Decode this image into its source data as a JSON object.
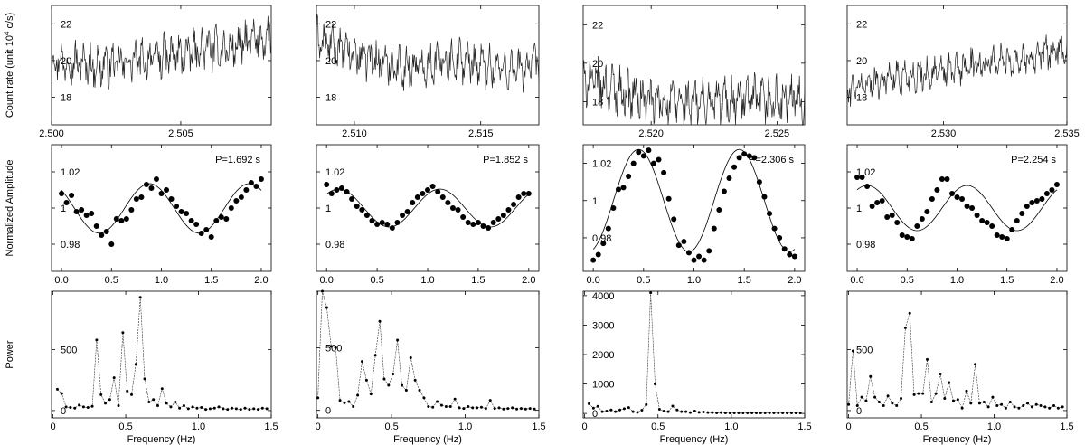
{
  "chart_data": [
    {
      "type": "line",
      "row": "light curve",
      "panels": [
        {
          "ylabel": "Count rate (unit 10^4 c/s)",
          "xlim": [
            2.5,
            2.5085
          ],
          "ylim": [
            16.5,
            23.0
          ],
          "xticks": [
            2.5,
            2.505
          ],
          "xticklabels": [
            "2.500",
            "2.505"
          ],
          "yticks": [
            18,
            20,
            22
          ],
          "yticklabels": [
            "18",
            "20",
            "22"
          ],
          "trend": [
            20.1,
            19.9,
            19.7,
            19.8,
            20.0,
            20.2,
            20.3,
            20.7,
            20.6,
            21.0,
            21.3
          ],
          "noise": 1.0
        },
        {
          "ylabel": "",
          "xlim": [
            2.5085,
            2.5173
          ],
          "ylim": [
            16.5,
            23.0
          ],
          "xticks": [
            2.51,
            2.515
          ],
          "xticklabels": [
            "2.510",
            "2.515"
          ],
          "yticks": [
            18,
            20,
            22
          ],
          "yticklabels": [
            "18",
            "20",
            "22"
          ],
          "trend": [
            21.2,
            20.6,
            20.2,
            19.9,
            19.6,
            19.8,
            20.1,
            19.9,
            19.6,
            19.5,
            19.8
          ],
          "noise": 1.0
        },
        {
          "ylabel": "",
          "xlim": [
            2.5173,
            2.5261
          ],
          "ylim": [
            16.8,
            23.0
          ],
          "xticks": [
            2.52,
            2.525
          ],
          "xticklabels": [
            "2.520",
            "2.525"
          ],
          "yticks": [
            18,
            20,
            22
          ],
          "yticklabels": [
            "18",
            "20",
            "22"
          ],
          "trend": [
            19.2,
            18.8,
            18.4,
            18.0,
            17.9,
            17.9,
            18.0,
            18.1,
            18.0,
            18.0,
            18.1
          ],
          "noise": 1.1
        },
        {
          "ylabel": "",
          "xlim": [
            2.5261,
            2.535
          ],
          "ylim": [
            16.5,
            23.0
          ],
          "xticks": [
            2.53,
            2.535
          ],
          "xticklabels": [
            "2.530",
            "2.535"
          ],
          "yticks": [
            18,
            20,
            22
          ],
          "yticklabels": [
            "18",
            "20",
            "22"
          ],
          "trend": [
            18.3,
            18.8,
            19.1,
            19.2,
            19.3,
            19.5,
            19.8,
            20.0,
            20.1,
            20.4,
            20.6
          ],
          "noise": 0.8
        }
      ]
    },
    {
      "type": "scatter",
      "row": "folded light curve",
      "panels": [
        {
          "ylabel": "Normalized Amplitude",
          "annotation": "P=1.692 s",
          "xlim": [
            -0.1,
            2.1
          ],
          "ylim": [
            0.965,
            1.035
          ],
          "xticks": [
            0.0,
            0.5,
            1.0,
            1.5,
            2.0
          ],
          "xticklabels": [
            "0.0",
            "0.5",
            "1.0",
            "1.5",
            "2.0"
          ],
          "yticks": [
            0.98,
            1.0,
            1.02
          ],
          "yticklabels": [
            "0.98",
            "1",
            "1.02"
          ],
          "fit": {
            "mean": 0.9998,
            "amp": 0.0137,
            "phase_max": 0.88
          },
          "points": [
            1.008,
            1.003,
            1.007,
            0.998,
            0.999,
            0.996,
            0.997,
            0.99,
            0.985,
            0.987,
            0.98,
            0.994,
            0.993,
            0.994,
            0.999,
            1.005,
            1.006,
            1.013,
            1.011,
            1.016,
            1.008,
            1.01,
            1.005,
            1.001,
            0.998,
            0.997,
            0.993,
            0.991,
            0.986,
            0.988,
            0.984,
            0.993,
            0.995,
            0.994,
            1.0,
            1.004,
            1.006,
            1.01,
            1.014,
            1.012,
            1.016
          ]
        },
        {
          "ylabel": "",
          "annotation": "P=1.852 s",
          "xlim": [
            -0.1,
            2.1
          ],
          "ylim": [
            0.965,
            1.035
          ],
          "xticks": [
            0.0,
            0.5,
            1.0,
            1.5,
            2.0
          ],
          "xticklabels": [
            "0.0",
            "0.5",
            "1.0",
            "1.5",
            "2.0"
          ],
          "yticks": [
            0.98,
            1.0,
            1.02
          ],
          "yticklabels": [
            "0.98",
            "1",
            "1.02"
          ],
          "fit": {
            "mean": 1.0,
            "amp": 0.0105,
            "phase_max": 0.12
          },
          "points": [
            1.013,
            1.008,
            1.01,
            1.011,
            1.009,
            1.005,
            1.001,
            0.999,
            0.996,
            0.993,
            0.991,
            0.992,
            0.991,
            0.989,
            0.992,
            0.996,
            0.998,
            1.003,
            1.006,
            1.008,
            1.01,
            1.012,
            1.009,
            1.006,
            1.003,
            1.0,
            0.999,
            0.995,
            0.992,
            0.991,
            0.992,
            0.99,
            0.989,
            0.992,
            0.994,
            0.996,
            0.999,
            1.002,
            1.006,
            1.008,
            1.008
          ]
        },
        {
          "ylabel": "",
          "annotation": "P=2.306 s",
          "xlim": [
            -0.1,
            2.1
          ],
          "ylim": [
            0.962,
            1.03
          ],
          "xticks": [
            0.0,
            0.5,
            1.0,
            1.5,
            2.0
          ],
          "xticklabels": [
            "0.0",
            "0.5",
            "1.0",
            "1.5",
            "2.0"
          ],
          "yticks": [
            0.98,
            1.0,
            1.02
          ],
          "yticklabels": [
            "0.98",
            "1",
            "1.02"
          ],
          "fit": {
            "mean": 1.0,
            "amp": 0.0275,
            "phase_max": 0.45
          },
          "points": [
            0.968,
            0.971,
            0.977,
            0.985,
            0.996,
            1.006,
            1.007,
            1.013,
            1.02,
            1.026,
            1.024,
            1.027,
            1.02,
            1.022,
            1.015,
            1.001,
            0.99,
            0.976,
            0.978,
            0.972,
            0.968,
            0.97,
            0.968,
            0.973,
            0.985,
            0.995,
            1.005,
            1.012,
            1.018,
            1.023,
            1.025,
            1.024,
            1.023,
            1.01,
            1.002,
            0.993,
            0.985,
            0.98,
            0.974,
            0.971,
            0.97
          ]
        },
        {
          "ylabel": "",
          "annotation": "P=2.254 s",
          "xlim": [
            -0.1,
            2.1
          ],
          "ylim": [
            0.965,
            1.035
          ],
          "xticks": [
            0.0,
            0.5,
            1.0,
            1.5,
            2.0
          ],
          "xticklabels": [
            "0.0",
            "0.5",
            "1.0",
            "1.5",
            "2.0"
          ],
          "yticks": [
            0.98,
            1.0,
            1.02
          ],
          "yticklabels": [
            "0.98",
            "1",
            "1.02"
          ],
          "fit": {
            "mean": 1.0,
            "amp": 0.0125,
            "phase_max": 0.1
          },
          "points": [
            1.017,
            1.017,
            1.012,
            1.001,
            1.003,
            1.004,
            0.995,
            0.996,
            0.992,
            0.985,
            0.984,
            0.983,
            0.99,
            0.994,
            0.998,
            1.005,
            1.01,
            1.016,
            1.016,
            1.008,
            1.006,
            1.005,
            1.001,
            1.0,
            0.996,
            0.993,
            0.992,
            0.99,
            0.985,
            0.984,
            0.983,
            0.988,
            0.993,
            0.997,
            1.001,
            1.003,
            1.004,
            1.005,
            1.008,
            1.01,
            1.013
          ]
        }
      ]
    },
    {
      "type": "line",
      "row": "power spectrum",
      "panels": [
        {
          "ylabel": "Power",
          "xlabel": "Frequency (Hz)",
          "xlim": [
            -0.01,
            1.5
          ],
          "ylim": [
            -60,
            980
          ],
          "xticks": [
            0,
            0.5,
            1.0,
            1.5
          ],
          "xticklabels": [
            "0",
            "0.5",
            "1.0",
            "1.5"
          ],
          "yticks": [
            0,
            500
          ],
          "yticklabels": [
            "0",
            "500"
          ],
          "x": [
            0.03,
            0.06,
            0.09,
            0.12,
            0.15,
            0.18,
            0.21,
            0.24,
            0.27,
            0.3,
            0.33,
            0.36,
            0.39,
            0.42,
            0.45,
            0.48,
            0.51,
            0.54,
            0.57,
            0.6,
            0.63,
            0.66,
            0.69,
            0.72,
            0.75,
            0.78,
            0.81,
            0.84,
            0.87,
            0.9,
            0.93,
            0.96,
            0.99,
            1.02,
            1.05,
            1.08,
            1.11,
            1.14,
            1.17,
            1.2,
            1.23,
            1.26,
            1.29,
            1.32,
            1.35,
            1.38,
            1.41,
            1.44,
            1.47
          ],
          "y": [
            175,
            140,
            30,
            25,
            20,
            45,
            30,
            25,
            35,
            580,
            130,
            60,
            90,
            270,
            40,
            640,
            160,
            130,
            380,
            930,
            260,
            70,
            90,
            40,
            180,
            60,
            30,
            70,
            20,
            40,
            15,
            30,
            20,
            25,
            10,
            15,
            20,
            30,
            15,
            10,
            20,
            15,
            10,
            20,
            10,
            15,
            10,
            20,
            15
          ]
        },
        {
          "ylabel": "",
          "xlabel": "Frequency (Hz)",
          "xlim": [
            -0.01,
            1.5
          ],
          "ylim": [
            -60,
            950
          ],
          "xticks": [
            0,
            0.5,
            1.0,
            1.5
          ],
          "xticklabels": [
            "0",
            "0.5",
            "1.0",
            "1.5"
          ],
          "yticks": [
            0,
            500
          ],
          "yticklabels": [
            "0",
            "500"
          ],
          "x": [
            0.0,
            0.03,
            0.06,
            0.09,
            0.12,
            0.15,
            0.18,
            0.21,
            0.24,
            0.27,
            0.3,
            0.33,
            0.36,
            0.39,
            0.42,
            0.45,
            0.48,
            0.51,
            0.54,
            0.57,
            0.6,
            0.63,
            0.66,
            0.69,
            0.72,
            0.75,
            0.78,
            0.81,
            0.84,
            0.87,
            0.9,
            0.93,
            0.96,
            0.99,
            1.02,
            1.05,
            1.08,
            1.11,
            1.14,
            1.17,
            1.2,
            1.23,
            1.26,
            1.29,
            1.32,
            1.35,
            1.38,
            1.41,
            1.44,
            1.47
          ],
          "y": [
            100,
            950,
            820,
            510,
            500,
            80,
            60,
            70,
            30,
            120,
            390,
            240,
            130,
            440,
            710,
            250,
            200,
            290,
            560,
            200,
            160,
            420,
            240,
            160,
            100,
            30,
            25,
            70,
            40,
            30,
            30,
            90,
            20,
            15,
            30,
            20,
            20,
            25,
            15,
            80,
            15,
            20,
            10,
            15,
            20,
            10,
            15,
            10,
            15,
            10
          ]
        },
        {
          "ylabel": "",
          "xlabel": "Frequency (Hz)",
          "xlim": [
            -0.01,
            1.5
          ],
          "ylim": [
            -150,
            4150
          ],
          "xticks": [
            0,
            0.5,
            1.0,
            1.5
          ],
          "xticklabels": [
            "0",
            "0.5",
            "1.0",
            "1.5"
          ],
          "yticks": [
            0,
            1000,
            2000,
            3000,
            4000
          ],
          "yticklabels": [
            "0",
            "1000",
            "2000",
            "3000",
            "4000"
          ],
          "x": [
            0.03,
            0.06,
            0.09,
            0.12,
            0.15,
            0.18,
            0.21,
            0.24,
            0.27,
            0.3,
            0.33,
            0.36,
            0.39,
            0.42,
            0.45,
            0.48,
            0.51,
            0.54,
            0.57,
            0.6,
            0.63,
            0.66,
            0.69,
            0.72,
            0.75,
            0.78,
            0.81,
            0.84,
            0.87,
            0.9,
            0.93,
            0.96,
            0.99,
            1.02,
            1.05,
            1.08,
            1.11,
            1.14,
            1.17,
            1.2,
            1.23,
            1.26,
            1.29,
            1.32,
            1.35,
            1.38,
            1.41,
            1.44,
            1.47
          ],
          "y": [
            330,
            180,
            240,
            60,
            80,
            120,
            60,
            120,
            160,
            200,
            60,
            40,
            110,
            300,
            4100,
            1000,
            140,
            80,
            60,
            250,
            120,
            60,
            60,
            30,
            80,
            40,
            50,
            30,
            30,
            20,
            30,
            20,
            20,
            20,
            20,
            20,
            20,
            20,
            20,
            20,
            20,
            20,
            20,
            20,
            20,
            20,
            20,
            20,
            20
          ]
        },
        {
          "ylabel": "",
          "xlabel": "Frequency (Hz)",
          "xlim": [
            -0.01,
            1.5
          ],
          "ylim": [
            -60,
            980
          ],
          "xticks": [
            0,
            0.5,
            1.0,
            1.5
          ],
          "xticklabels": [
            "0",
            "0.5",
            "1.0",
            "1.5"
          ],
          "yticks": [
            0,
            500
          ],
          "yticklabels": [
            "0",
            "500"
          ],
          "x": [
            0.0,
            0.03,
            0.06,
            0.09,
            0.12,
            0.15,
            0.18,
            0.21,
            0.24,
            0.27,
            0.3,
            0.33,
            0.36,
            0.39,
            0.42,
            0.45,
            0.48,
            0.51,
            0.54,
            0.57,
            0.6,
            0.63,
            0.66,
            0.69,
            0.72,
            0.75,
            0.78,
            0.81,
            0.84,
            0.87,
            0.9,
            0.93,
            0.96,
            0.99,
            1.02,
            1.05,
            1.08,
            1.11,
            1.14,
            1.17,
            1.2,
            1.23,
            1.26,
            1.29,
            1.32,
            1.35,
            1.38,
            1.41,
            1.44,
            1.47
          ],
          "y": [
            50,
            490,
            40,
            110,
            80,
            280,
            110,
            70,
            40,
            120,
            60,
            40,
            100,
            680,
            800,
            130,
            140,
            140,
            420,
            70,
            140,
            300,
            100,
            230,
            80,
            90,
            20,
            160,
            60,
            380,
            60,
            70,
            30,
            110,
            40,
            50,
            20,
            70,
            30,
            20,
            40,
            60,
            30,
            50,
            40,
            30,
            20,
            40,
            20,
            30
          ]
        }
      ]
    }
  ]
}
